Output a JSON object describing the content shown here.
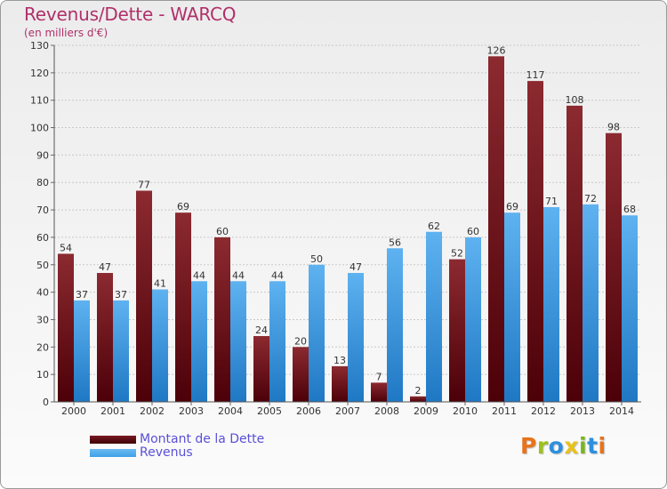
{
  "chart_data": {
    "type": "bar",
    "title": "Revenus/Dette - WARCQ",
    "subtitle": "(en milliers d'€)",
    "xlabel": "",
    "ylabel": "",
    "ylim": [
      0,
      130
    ],
    "yticks": [
      0,
      10,
      20,
      30,
      40,
      50,
      60,
      70,
      80,
      90,
      100,
      110,
      120,
      130
    ],
    "grid": true,
    "categories": [
      "2000",
      "2001",
      "2002",
      "2003",
      "2004",
      "2005",
      "2006",
      "2007",
      "2008",
      "2009",
      "2010",
      "2011",
      "2012",
      "2013",
      "2014"
    ],
    "series": [
      {
        "name": "Montant de la Dette",
        "color": "#7a1a22",
        "values": [
          54,
          47,
          77,
          69,
          60,
          24,
          20,
          13,
          7,
          2,
          52,
          126,
          117,
          108,
          98
        ]
      },
      {
        "name": "Revenus",
        "color": "#3f9fe6",
        "values": [
          37,
          37,
          41,
          44,
          44,
          44,
          50,
          47,
          56,
          62,
          60,
          69,
          71,
          72,
          68
        ]
      }
    ],
    "legend_position": "bottom-left"
  },
  "legend": {
    "debt_label": "Montant de la Dette",
    "revenue_label": "Revenus",
    "debt_color": "#7a1a22",
    "revenue_color": "#3f9fe6"
  },
  "logo": {
    "letters": [
      "P",
      "r",
      "o",
      "x",
      "i",
      "t",
      "i"
    ],
    "colors": [
      "#e8731a",
      "#9dc21a",
      "#2d8fdc",
      "#e8c21a",
      "#7ab51d",
      "#2d8fdc",
      "#e8731a"
    ]
  }
}
